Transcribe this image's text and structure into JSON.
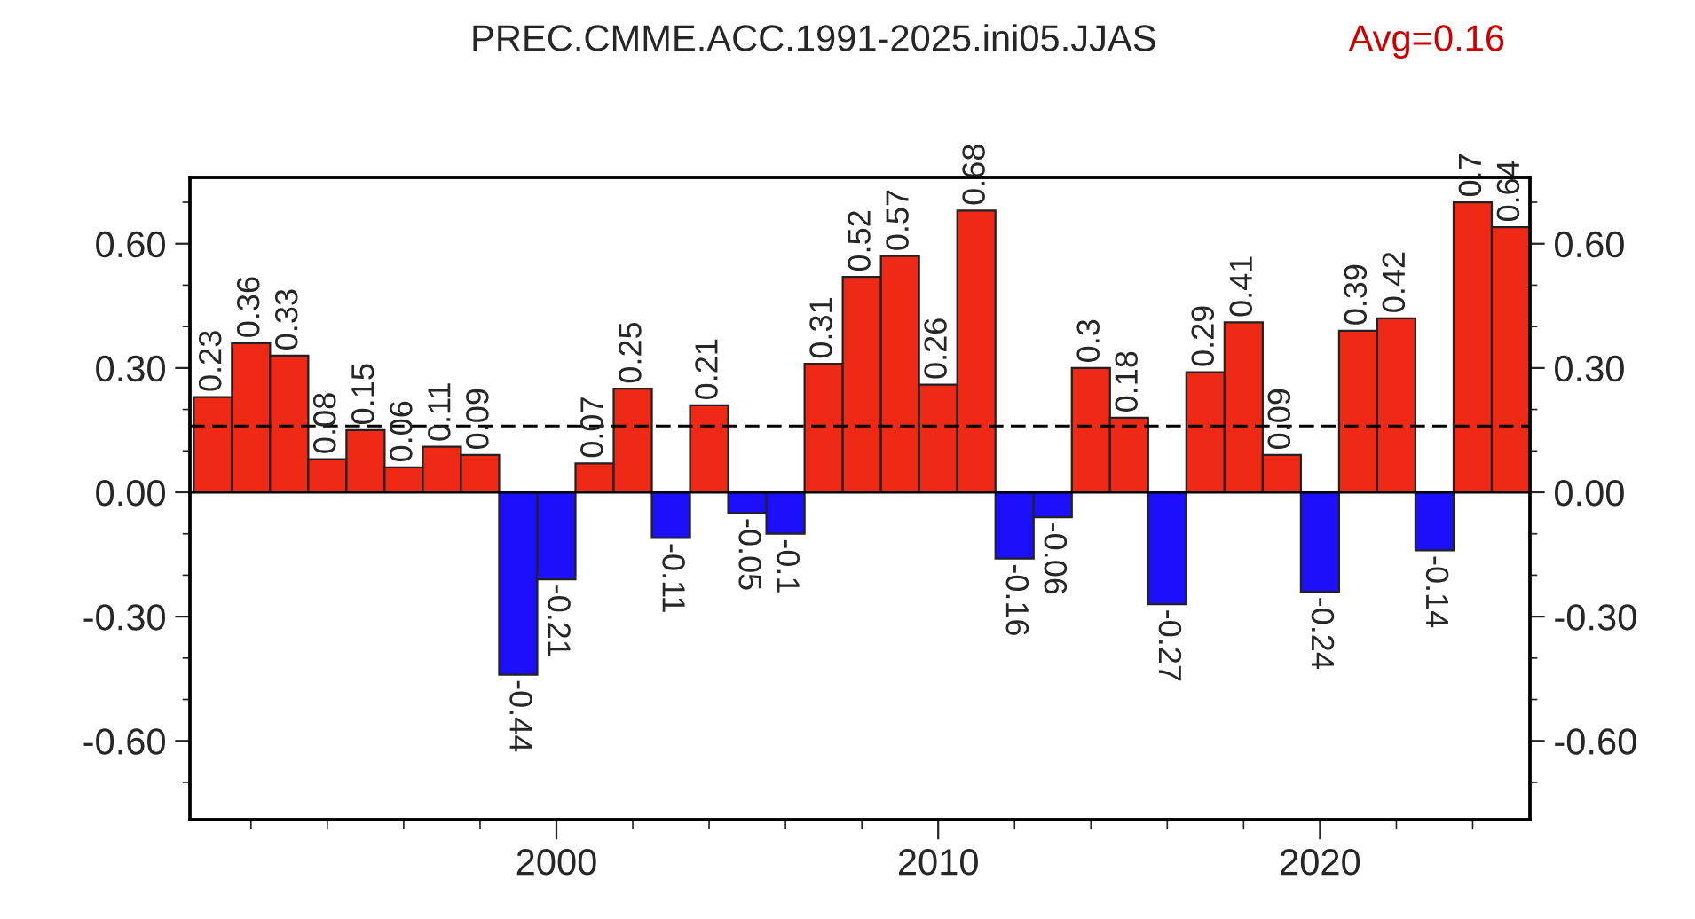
{
  "chart_data": {
    "type": "bar",
    "title": "PREC.CMME.ACC.1991-2025.ini05.JJAS",
    "x": [
      1991,
      1992,
      1993,
      1994,
      1995,
      1996,
      1997,
      1998,
      1999,
      2000,
      2001,
      2002,
      2003,
      2004,
      2005,
      2006,
      2007,
      2008,
      2009,
      2010,
      2011,
      2012,
      2013,
      2014,
      2015,
      2016,
      2017,
      2018,
      2019,
      2020,
      2021,
      2022,
      2023,
      2024,
      2025
    ],
    "values": [
      0.23,
      0.36,
      0.33,
      0.08,
      0.15,
      0.06,
      0.11,
      0.09,
      -0.44,
      -0.21,
      0.07,
      0.25,
      -0.11,
      0.21,
      -0.05,
      -0.1,
      0.31,
      0.52,
      0.57,
      0.26,
      0.68,
      -0.16,
      -0.06,
      0.3,
      0.18,
      -0.27,
      0.29,
      0.41,
      0.09,
      -0.24,
      0.39,
      0.42,
      -0.14,
      0.7,
      0.64
    ],
    "colors": [
      "#ee2a17",
      "#ee2a17",
      "#ee2a17",
      "#ee2a17",
      "#ee2a17",
      "#ee2a17",
      "#ee2a17",
      "#ee2a17",
      "#1c10fa",
      "#1c10fa",
      "#ee2a17",
      "#ee2a17",
      "#1c10fa",
      "#ee2a17",
      "#1c10fa",
      "#1c10fa",
      "#ee2a17",
      "#ee2a17",
      "#ee2a17",
      "#ee2a17",
      "#ee2a17",
      "#1c10fa",
      "#1c10fa",
      "#ee2a17",
      "#ee2a17",
      "#1c10fa",
      "#ee2a17",
      "#ee2a17",
      "#ee2a17",
      "#1c10fa",
      "#ee2a17",
      "#ee2a17",
      "#1c10fa",
      "#ee2a17",
      "#ee2a17"
    ],
    "data_labels": true,
    "xlim": [
      1990.4,
      2025.5
    ],
    "xticks": [
      2000,
      2010,
      2020
    ],
    "ylim": [
      -0.79,
      0.76
    ],
    "yticks": [
      {
        "value": -0.6,
        "label": "-0.60"
      },
      {
        "value": -0.3,
        "label": "-0.30"
      },
      {
        "value": 0,
        "label": "0.00"
      },
      {
        "value": 0.3,
        "label": "0.30"
      },
      {
        "value": 0.6,
        "label": "0.60"
      }
    ],
    "y2lim": [
      -0.79,
      0.76
    ],
    "y2ticks": [
      {
        "value": -0.6,
        "label": "-0.60"
      },
      {
        "value": -0.3,
        "label": "-0.30"
      },
      {
        "value": 0,
        "label": "0.00"
      },
      {
        "value": 0.3,
        "label": "0.30"
      },
      {
        "value": 0.6,
        "label": "0.60"
      }
    ],
    "annotations": [
      "Avg=0.16"
    ],
    "ref_lines": [
      {
        "axis": "y",
        "value": 0.16,
        "color": "#000000",
        "line_style": "dashed"
      },
      {
        "axis": "y",
        "value": 0,
        "color": "#000000",
        "line_style": "solid"
      }
    ],
    "grid": false,
    "legend": false
  }
}
